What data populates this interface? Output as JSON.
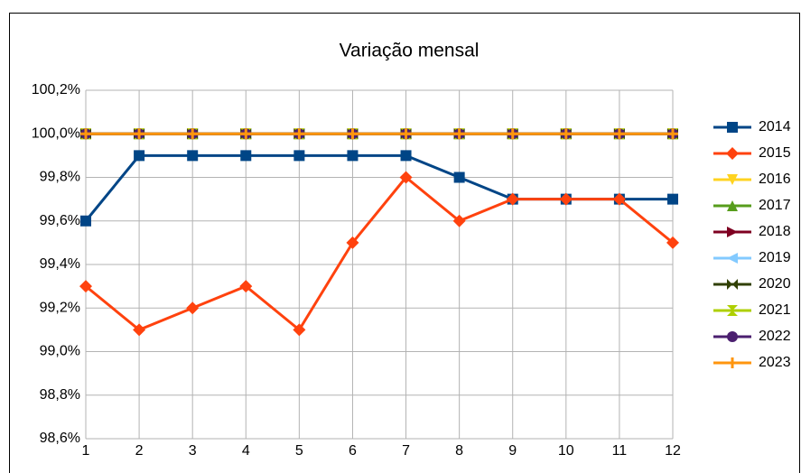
{
  "chart_data": {
    "type": "line",
    "title": "Variação mensal",
    "x": [
      1,
      2,
      3,
      4,
      5,
      6,
      7,
      8,
      9,
      10,
      11,
      12
    ],
    "xlim": [
      1,
      12
    ],
    "xticks": [
      1,
      2,
      3,
      4,
      5,
      6,
      7,
      8,
      9,
      10,
      11,
      12
    ],
    "ylim": [
      98.6,
      100.2
    ],
    "yticks": [
      {
        "value": 98.6,
        "label": "98,6%"
      },
      {
        "value": 98.8,
        "label": "98,8%"
      },
      {
        "value": 99.0,
        "label": "99,0%"
      },
      {
        "value": 99.2,
        "label": "99,2%"
      },
      {
        "value": 99.4,
        "label": "99,4%"
      },
      {
        "value": 99.6,
        "label": "99,6%"
      },
      {
        "value": 99.8,
        "label": "99,8%"
      },
      {
        "value": 100.0,
        "label": "100,0%"
      },
      {
        "value": 100.2,
        "label": "100,2%"
      }
    ],
    "grid": true,
    "legend": "right",
    "series": [
      {
        "name": "2014",
        "color": "#004586",
        "marker": "square",
        "values": [
          99.6,
          99.9,
          99.9,
          99.9,
          99.9,
          99.9,
          99.9,
          99.8,
          99.7,
          99.7,
          99.7,
          99.7
        ]
      },
      {
        "name": "2015",
        "color": "#ff420e",
        "marker": "diamond",
        "values": [
          99.3,
          99.1,
          99.2,
          99.3,
          99.1,
          99.5,
          99.8,
          99.6,
          99.7,
          99.7,
          99.7,
          99.5
        ]
      },
      {
        "name": "2016",
        "color": "#ffd320",
        "marker": "triangle-down",
        "values": [
          100,
          100,
          100,
          100,
          100,
          100,
          100,
          100,
          100,
          100,
          100,
          100
        ]
      },
      {
        "name": "2017",
        "color": "#579d1c",
        "marker": "triangle-up",
        "values": [
          100,
          100,
          100,
          100,
          100,
          100,
          100,
          100,
          100,
          100,
          100,
          100
        ]
      },
      {
        "name": "2018",
        "color": "#7e0021",
        "marker": "triangle-right",
        "values": [
          100,
          100,
          100,
          100,
          100,
          100,
          100,
          100,
          100,
          100,
          100,
          100
        ]
      },
      {
        "name": "2019",
        "color": "#83caff",
        "marker": "triangle-left",
        "values": [
          100,
          100,
          100,
          100,
          100,
          100,
          100,
          100,
          100,
          100,
          100,
          100
        ]
      },
      {
        "name": "2020",
        "color": "#314004",
        "marker": "bowtie",
        "values": [
          100,
          100,
          100,
          100,
          100,
          100,
          100,
          100,
          100,
          100,
          100,
          100
        ]
      },
      {
        "name": "2021",
        "color": "#aecf00",
        "marker": "hourglass",
        "values": [
          100,
          100,
          100,
          100,
          100,
          100,
          100,
          100,
          100,
          100,
          100,
          100
        ]
      },
      {
        "name": "2022",
        "color": "#4b1f6f",
        "marker": "circle",
        "values": [
          100,
          100,
          100,
          100,
          100,
          100,
          100,
          100,
          100,
          100,
          100,
          100
        ]
      },
      {
        "name": "2023",
        "color": "#ff950e",
        "marker": "plus",
        "values": [
          100,
          100,
          100,
          100,
          100,
          100,
          100,
          100,
          100,
          100,
          100,
          100
        ]
      }
    ]
  }
}
